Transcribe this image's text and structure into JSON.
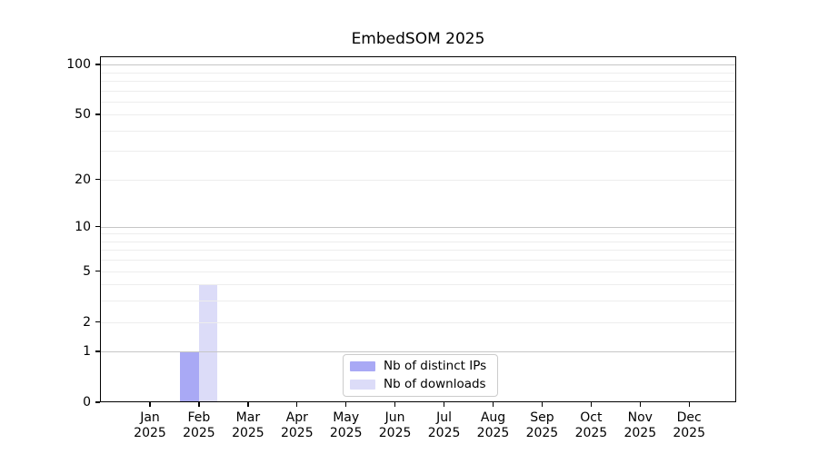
{
  "title": "EmbedSOM 2025",
  "chart_data": {
    "type": "bar",
    "title": "EmbedSOM 2025",
    "x_months": [
      "Jan",
      "Feb",
      "Mar",
      "Apr",
      "May",
      "Jun",
      "Jul",
      "Aug",
      "Sep",
      "Oct",
      "Nov",
      "Dec"
    ],
    "x_year": "2025",
    "series": [
      {
        "name": "Nb of distinct IPs",
        "color": "#a9a9f5",
        "values": [
          0,
          1,
          0,
          0,
          0,
          0,
          0,
          0,
          0,
          0,
          0,
          0
        ]
      },
      {
        "name": "Nb of downloads",
        "color": "#dcdcf8",
        "values": [
          0,
          4,
          0,
          0,
          0,
          0,
          0,
          0,
          0,
          0,
          0,
          0
        ]
      }
    ],
    "y_scale": "log1p",
    "ylim": [
      0,
      112
    ],
    "y_ticks": [
      0,
      1,
      2,
      5,
      10,
      20,
      50,
      100
    ],
    "grid_major": [
      1,
      10,
      100
    ],
    "grid_minor": [
      2,
      3,
      4,
      5,
      6,
      7,
      8,
      9,
      20,
      30,
      40,
      50,
      60,
      70,
      80,
      90
    ],
    "grid_on": true,
    "legend_position": "inside-bottom-center",
    "legend_items": [
      "Nb of distinct IPs",
      "Nb of downloads"
    ]
  },
  "colors": {
    "background": "#ffffff",
    "axis": "#000000",
    "text": "#000000",
    "grid_major": "#c6c6c6",
    "grid_minor": "#ededed",
    "legend_border": "#cccccc",
    "bar_distinct_ips": "#a9a9f5",
    "bar_downloads": "#dcdcf8"
  }
}
